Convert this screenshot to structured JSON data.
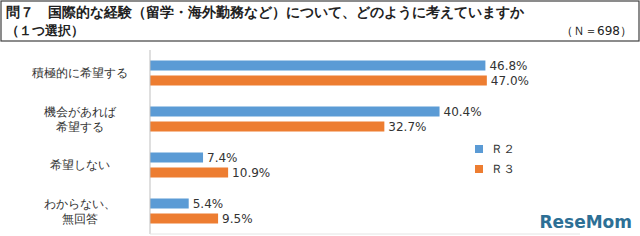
{
  "chart_data": {
    "type": "bar",
    "orientation": "horizontal",
    "title": "問７　国際的な経験（留学・海外勤務など）について、どのように考えていますか",
    "subtitle": "（１つ選択）",
    "annotations": [
      "（Ｎ＝698）",
      "ReseMom"
    ],
    "categories": [
      "積極的に希望する",
      "機会があれば\n希望する",
      "希望しない",
      "わからない、\n無回答"
    ],
    "series": [
      {
        "name": "Ｒ２",
        "color": "#5b9bd5",
        "values": [
          46.8,
          40.4,
          7.4,
          5.4
        ],
        "value_labels": [
          "46.8%",
          "40.4%",
          "7.4%",
          "5.4%"
        ]
      },
      {
        "name": "Ｒ３",
        "color": "#ed7d31",
        "values": [
          47.0,
          32.7,
          10.9,
          9.5
        ],
        "value_labels": [
          "47.0%",
          "32.7%",
          "10.9%",
          "9.5%"
        ]
      }
    ],
    "xlim": [
      0,
      60
    ],
    "grid": false,
    "data_labels": true,
    "tick_labels": "y",
    "legend": "right"
  }
}
